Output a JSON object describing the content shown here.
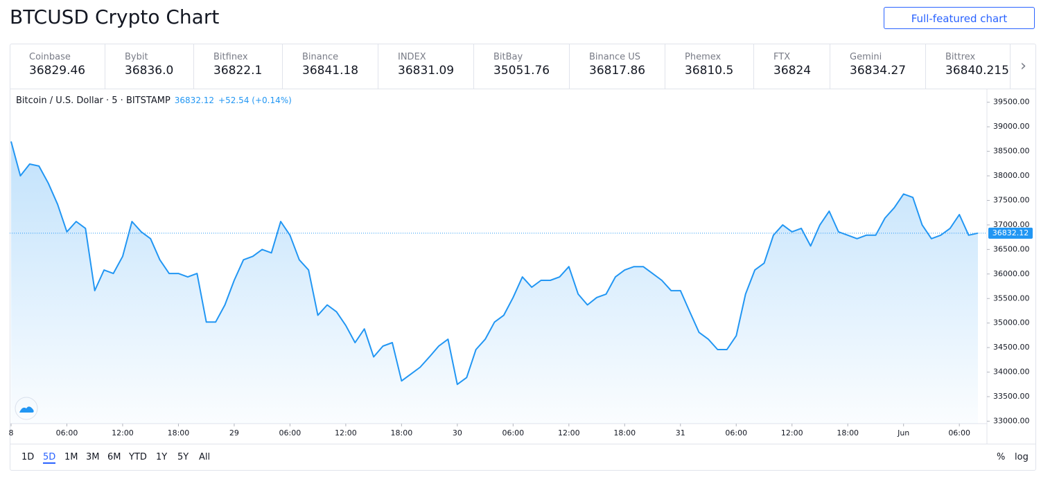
{
  "header": {
    "title": "BTCUSD Crypto Chart",
    "button": "Full-featured chart"
  },
  "exchanges": [
    {
      "name": "Coinbase",
      "price": "36829.46"
    },
    {
      "name": "Bybit",
      "price": "36836.0"
    },
    {
      "name": "Bitfinex",
      "price": "36822.1"
    },
    {
      "name": "Binance",
      "price": "36841.18"
    },
    {
      "name": "INDEX",
      "price": "36831.09"
    },
    {
      "name": "BitBay",
      "price": "35051.76"
    },
    {
      "name": "Binance US",
      "price": "36817.86"
    },
    {
      "name": "Phemex",
      "price": "36810.5"
    },
    {
      "name": "FTX",
      "price": "36824"
    },
    {
      "name": "Gemini",
      "price": "36834.27"
    },
    {
      "name": "Bittrex",
      "price": "36840.215"
    }
  ],
  "chart_data": {
    "type": "area",
    "symbol": "Bitcoin / U.S. Dollar · 5 · BITSTAMP",
    "last": 36832.12,
    "change": "+52.54 (+0.14%)",
    "color": "#2196f3",
    "grid": false,
    "categories": [
      "8",
      null,
      null,
      null,
      null,
      null,
      "06:00",
      null,
      null,
      null,
      null,
      null,
      "12:00",
      null,
      null,
      null,
      null,
      null,
      "18:00",
      null,
      null,
      null,
      null,
      null,
      "29",
      null,
      null,
      null,
      null,
      null,
      "06:00",
      null,
      null,
      null,
      null,
      null,
      "12:00",
      null,
      null,
      null,
      null,
      null,
      "18:00",
      null,
      null,
      null,
      null,
      null,
      "30",
      null,
      null,
      null,
      null,
      null,
      "06:00",
      null,
      null,
      null,
      null,
      null,
      "12:00",
      null,
      null,
      null,
      null,
      null,
      "18:00",
      null,
      null,
      null,
      null,
      null,
      "31",
      null,
      null,
      null,
      null,
      null,
      "06:00",
      null,
      null,
      null,
      null,
      null,
      "12:00",
      null,
      null,
      null,
      null,
      null,
      "18:00",
      null,
      null,
      null,
      null,
      null,
      "Jun",
      null,
      null,
      null,
      null,
      null,
      "06:00",
      null,
      null
    ],
    "values": [
      38700,
      38000,
      38240,
      38200,
      37850,
      37420,
      36860,
      37070,
      36930,
      35660,
      36080,
      36010,
      36360,
      37070,
      36860,
      36720,
      36290,
      36010,
      36010,
      35940,
      36010,
      35020,
      35020,
      35370,
      35870,
      36290,
      36360,
      36500,
      36430,
      37070,
      36790,
      36290,
      36080,
      35160,
      35370,
      35230,
      34950,
      34600,
      34880,
      34310,
      34530,
      34600,
      33820,
      33960,
      34100,
      34310,
      34530,
      34670,
      33750,
      33890,
      34460,
      34670,
      35020,
      35160,
      35520,
      35940,
      35730,
      35870,
      35870,
      35940,
      36150,
      35590,
      35370,
      35520,
      35590,
      35940,
      36080,
      36150,
      36150,
      36010,
      35870,
      35660,
      35660,
      35230,
      34810,
      34670,
      34460,
      34460,
      34740,
      35590,
      36080,
      36220,
      36790,
      37000,
      36860,
      36930,
      36570,
      37000,
      37280,
      36860,
      36790,
      36720,
      36790,
      36790,
      37140,
      37350,
      37630,
      37560,
      37000,
      36720,
      36790,
      36930,
      37210,
      36790,
      36832.12
    ],
    "ylim": [
      32950,
      39750
    ],
    "yticks": [
      {
        "value": 33000,
        "label": "33000.00"
      },
      {
        "value": 33500,
        "label": "33500.00"
      },
      {
        "value": 34000,
        "label": "34000.00"
      },
      {
        "value": 34500,
        "label": "34500.00"
      },
      {
        "value": 35000,
        "label": "35000.00"
      },
      {
        "value": 35500,
        "label": "35500.00"
      },
      {
        "value": 36000,
        "label": "36000.00"
      },
      {
        "value": 36500,
        "label": "36500.00"
      },
      {
        "value": 37000,
        "label": "37000.00"
      },
      {
        "value": 37500,
        "label": "37500.00"
      },
      {
        "value": 38000,
        "label": "38000.00"
      },
      {
        "value": 38500,
        "label": "38500.00"
      },
      {
        "value": 39000,
        "label": "39000.00"
      },
      {
        "value": 39500,
        "label": "39500.00"
      }
    ]
  },
  "ranges": [
    "1D",
    "5D",
    "1M",
    "3M",
    "6M",
    "YTD",
    "1Y",
    "5Y",
    "All"
  ],
  "selected_range": 1,
  "scale_options": [
    "%",
    "log"
  ]
}
